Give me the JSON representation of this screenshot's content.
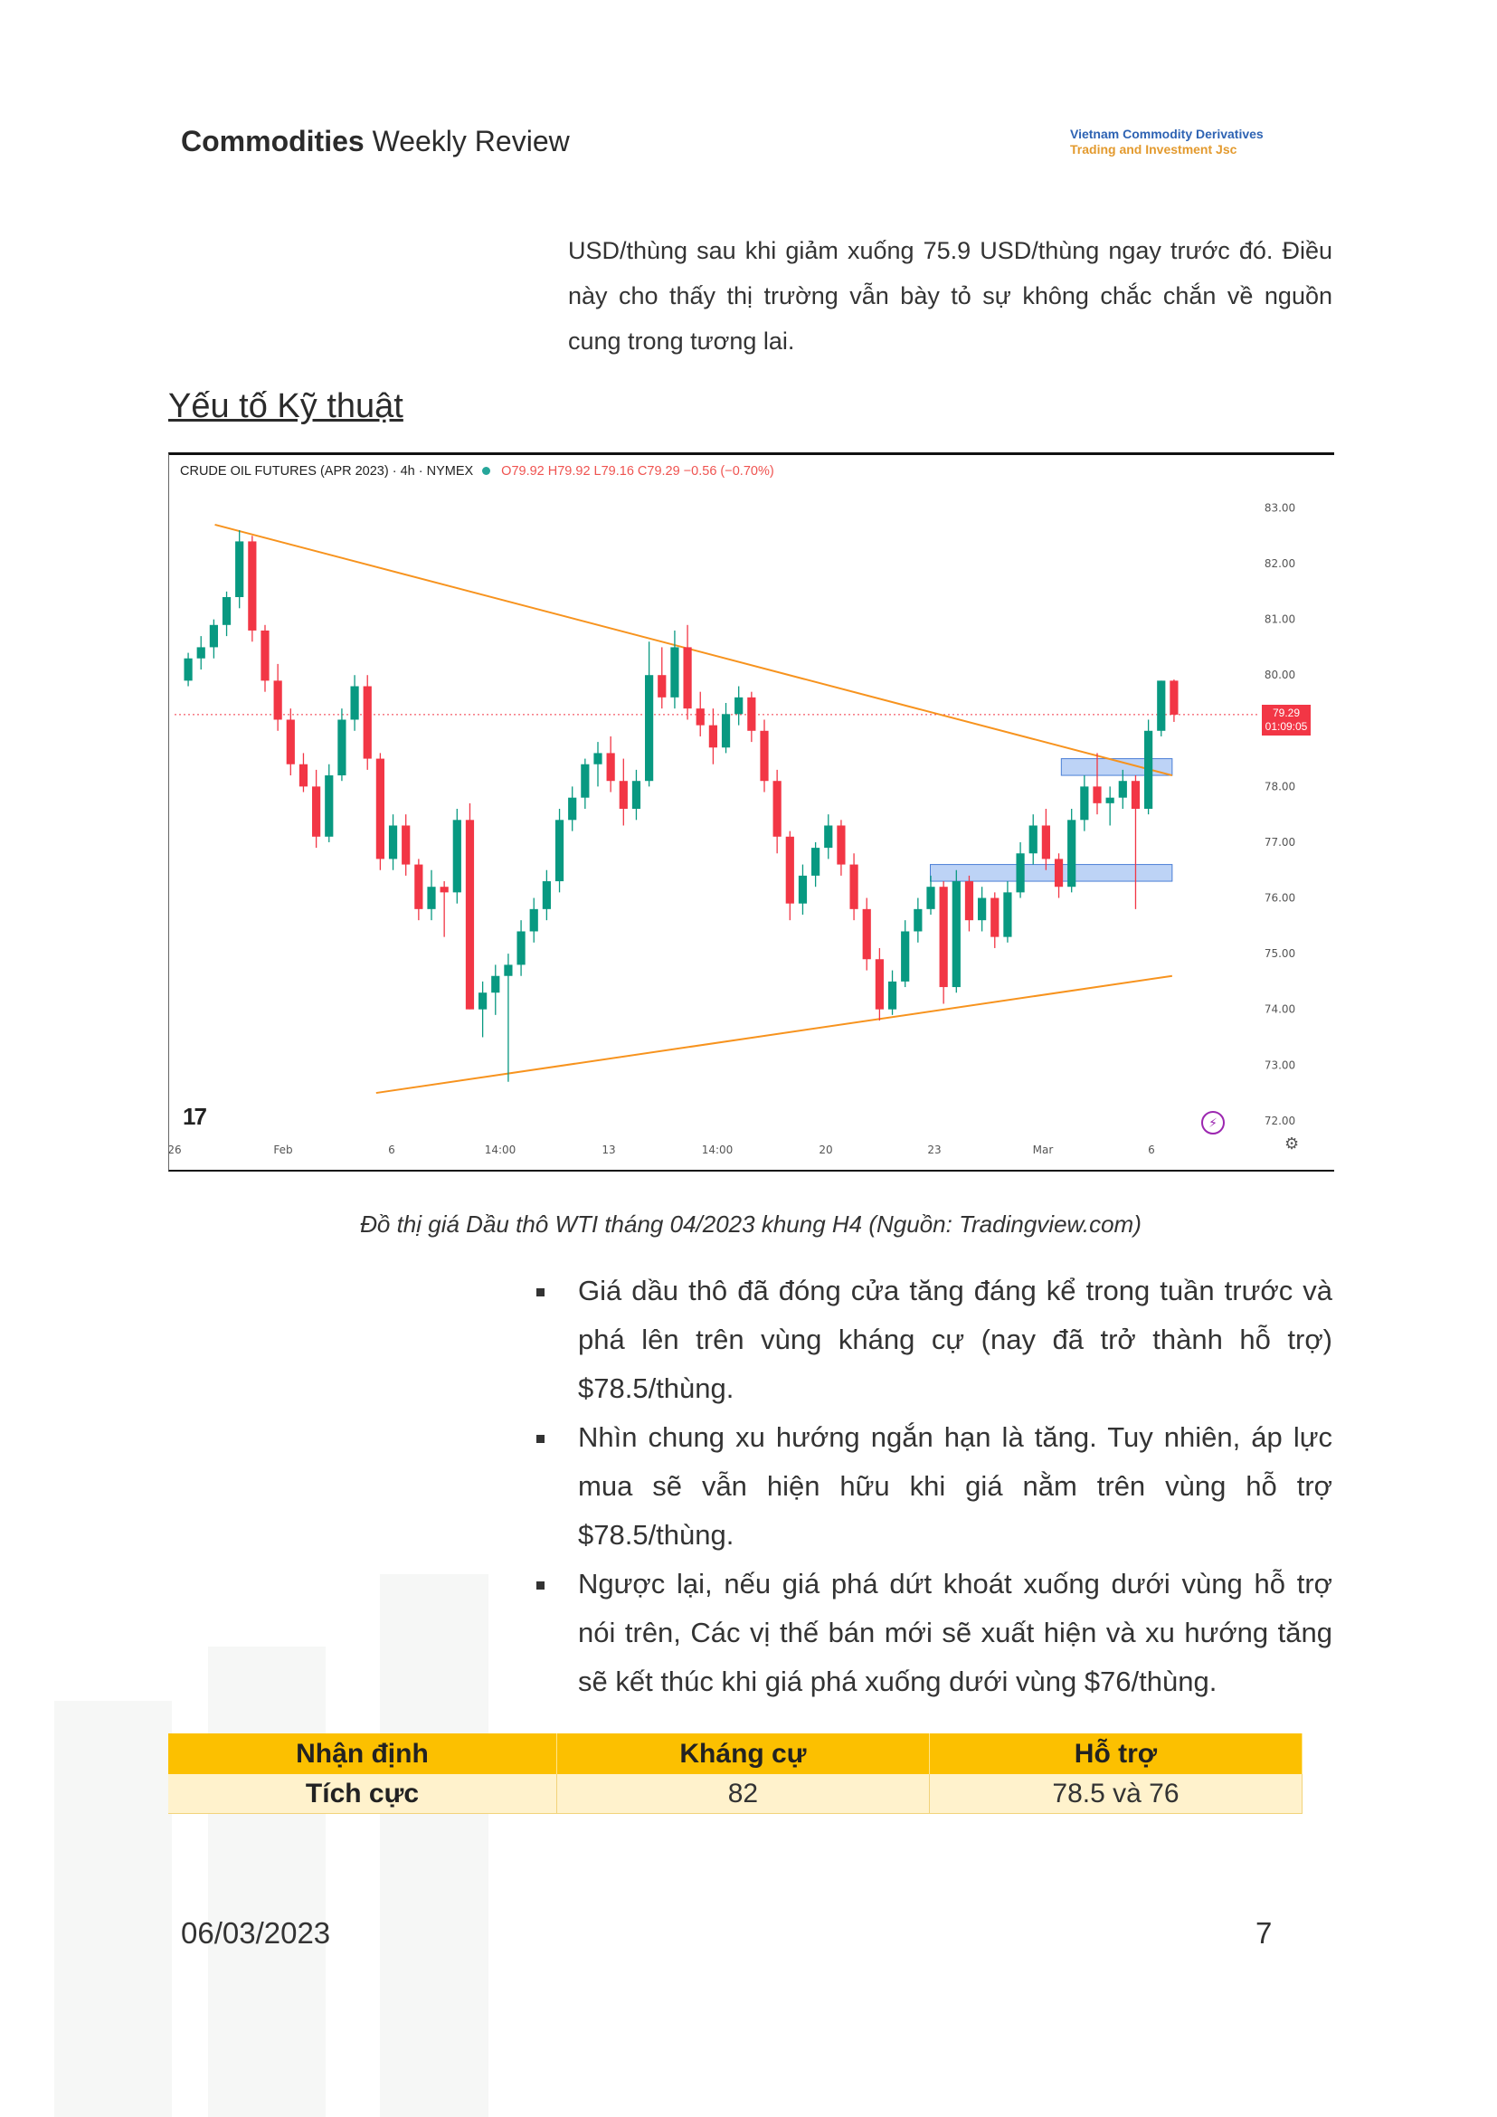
{
  "header": {
    "title_bold": "Commodities",
    "title_rest": " Weekly Review",
    "brand_line1": "Vietnam Commodity Derivatives",
    "brand_line2": "Trading and Investment Jsc"
  },
  "intro_text": "USD/thùng sau khi giảm xuống 75.9 USD/thùng ngay trước đó. Điều này cho thấy thị trường vẫn bày tỏ sự không chắc chắn về nguồn cung trong tương lai.",
  "section_title": "Yếu tố Kỹ thuật",
  "chart_header": {
    "symbol": "CRUDE OIL FUTURES (APR 2023) · 4h · NYMEX",
    "ohlc": "O79.92 H79.92 L79.16 C79.29 −0.56 (−0.70%)"
  },
  "price_tag": {
    "price": "79.29",
    "countdown": "01:09:05"
  },
  "colors": {
    "up": "#089981",
    "down": "#f23645",
    "trendline": "#f7931e",
    "zone": "#6d9eeb",
    "header_bar": "#fcc000",
    "table_row": "#fff2cc"
  },
  "icons": {
    "logo": "tradingview-logo-icon",
    "replay": "bolt-icon",
    "settings": "gear-icon"
  },
  "chart_data": {
    "type": "candlestick",
    "y_ticks": [
      "83.00",
      "82.00",
      "81.00",
      "80.00",
      "78.00",
      "77.00",
      "76.00",
      "75.00",
      "74.00",
      "73.00",
      "72.00"
    ],
    "x_ticks": [
      "26",
      "Feb",
      "6",
      "14:00",
      "13",
      "14:00",
      "20",
      "23",
      "Mar",
      "6"
    ],
    "ylim": [
      71.9,
      83.3
    ],
    "last_price": 79.29,
    "ohlc": [
      [
        79.9,
        80.4,
        79.8,
        80.3
      ],
      [
        80.3,
        80.7,
        80.1,
        80.5
      ],
      [
        80.5,
        81.0,
        80.3,
        80.9
      ],
      [
        80.9,
        81.5,
        80.7,
        81.4
      ],
      [
        81.4,
        82.6,
        81.2,
        82.4
      ],
      [
        82.4,
        82.5,
        80.6,
        80.8
      ],
      [
        80.8,
        80.9,
        79.7,
        79.9
      ],
      [
        79.9,
        80.2,
        79.0,
        79.2
      ],
      [
        79.2,
        79.4,
        78.2,
        78.4
      ],
      [
        78.4,
        78.6,
        77.9,
        78.0
      ],
      [
        78.0,
        78.3,
        76.9,
        77.1
      ],
      [
        77.1,
        78.4,
        77.0,
        78.2
      ],
      [
        78.2,
        79.4,
        78.1,
        79.2
      ],
      [
        79.2,
        80.0,
        79.0,
        79.8
      ],
      [
        79.8,
        80.0,
        78.3,
        78.5
      ],
      [
        78.5,
        78.6,
        76.5,
        76.7
      ],
      [
        76.7,
        77.5,
        76.5,
        77.3
      ],
      [
        77.3,
        77.5,
        76.4,
        76.6
      ],
      [
        76.6,
        76.7,
        75.6,
        75.8
      ],
      [
        75.8,
        76.5,
        75.6,
        76.2
      ],
      [
        76.2,
        76.3,
        75.3,
        76.1
      ],
      [
        76.1,
        77.6,
        75.9,
        77.4
      ],
      [
        77.4,
        77.7,
        74.0,
        74.0
      ],
      [
        74.0,
        74.5,
        73.5,
        74.3
      ],
      [
        74.3,
        74.8,
        73.9,
        74.6
      ],
      [
        74.6,
        75.0,
        72.7,
        74.8
      ],
      [
        74.8,
        75.6,
        74.6,
        75.4
      ],
      [
        75.4,
        76.0,
        75.2,
        75.8
      ],
      [
        75.8,
        76.5,
        75.6,
        76.3
      ],
      [
        76.3,
        77.6,
        76.1,
        77.4
      ],
      [
        77.4,
        78.0,
        77.2,
        77.8
      ],
      [
        77.8,
        78.5,
        77.6,
        78.4
      ],
      [
        78.4,
        78.8,
        78.0,
        78.6
      ],
      [
        78.6,
        78.9,
        77.9,
        78.1
      ],
      [
        78.1,
        78.5,
        77.3,
        77.6
      ],
      [
        77.6,
        78.3,
        77.4,
        78.1
      ],
      [
        78.1,
        80.6,
        78.0,
        80.0
      ],
      [
        80.0,
        80.5,
        79.4,
        79.6
      ],
      [
        79.6,
        80.8,
        79.4,
        80.5
      ],
      [
        80.5,
        80.9,
        79.2,
        79.4
      ],
      [
        79.4,
        79.7,
        78.9,
        79.1
      ],
      [
        79.1,
        79.4,
        78.4,
        78.7
      ],
      [
        78.7,
        79.5,
        78.6,
        79.3
      ],
      [
        79.3,
        79.8,
        79.1,
        79.6
      ],
      [
        79.6,
        79.7,
        78.8,
        79.0
      ],
      [
        79.0,
        79.2,
        77.9,
        78.1
      ],
      [
        78.1,
        78.3,
        76.8,
        77.1
      ],
      [
        77.1,
        77.2,
        75.6,
        75.9
      ],
      [
        75.9,
        76.6,
        75.7,
        76.4
      ],
      [
        76.4,
        77.0,
        76.2,
        76.9
      ],
      [
        76.9,
        77.5,
        76.7,
        77.3
      ],
      [
        77.3,
        77.4,
        76.4,
        76.6
      ],
      [
        76.6,
        76.8,
        75.6,
        75.8
      ],
      [
        75.8,
        76.0,
        74.7,
        74.9
      ],
      [
        74.9,
        75.1,
        73.8,
        74.0
      ],
      [
        74.0,
        74.7,
        73.9,
        74.5
      ],
      [
        74.5,
        75.6,
        74.4,
        75.4
      ],
      [
        75.4,
        76.0,
        75.2,
        75.8
      ],
      [
        75.8,
        76.4,
        75.7,
        76.2
      ],
      [
        76.2,
        76.3,
        74.1,
        74.4
      ],
      [
        74.4,
        76.5,
        74.3,
        76.3
      ],
      [
        76.3,
        76.4,
        75.4,
        75.6
      ],
      [
        75.6,
        76.2,
        75.4,
        76.0
      ],
      [
        76.0,
        76.1,
        75.1,
        75.3
      ],
      [
        75.3,
        76.3,
        75.2,
        76.1
      ],
      [
        76.1,
        77.0,
        76.0,
        76.8
      ],
      [
        76.8,
        77.5,
        76.6,
        77.3
      ],
      [
        77.3,
        77.6,
        76.5,
        76.7
      ],
      [
        76.7,
        76.8,
        76.0,
        76.2
      ],
      [
        76.2,
        77.6,
        76.1,
        77.4
      ],
      [
        77.4,
        78.2,
        77.2,
        78.0
      ],
      [
        78.0,
        78.6,
        77.5,
        77.7
      ],
      [
        77.7,
        78.0,
        77.3,
        77.8
      ],
      [
        77.8,
        78.3,
        77.6,
        78.1
      ],
      [
        78.1,
        78.2,
        75.8,
        77.6
      ],
      [
        77.6,
        79.2,
        77.5,
        79.0
      ],
      [
        79.0,
        79.9,
        78.9,
        79.9
      ],
      [
        79.9,
        79.92,
        79.16,
        79.29
      ]
    ],
    "overlays": {
      "falling_trendline": [
        [
          0.04,
          82.7
        ],
        [
          0.99,
          78.2
        ]
      ],
      "rising_trendline": [
        [
          0.2,
          72.5
        ],
        [
          0.99,
          74.6
        ]
      ],
      "zones": [
        {
          "x": [
            0.75,
            0.99
          ],
          "y": [
            76.3,
            76.6
          ]
        },
        {
          "x": [
            0.88,
            0.99
          ],
          "y": [
            78.2,
            78.5
          ]
        }
      ]
    }
  },
  "caption": "Đồ thị giá Dầu thô WTI tháng 04/2023 khung H4 (Nguồn: Tradingview.com)",
  "bullets": [
    "Giá dầu thô đã đóng cửa tăng đáng kể trong tuần trước và phá lên trên vùng kháng cự (nay đã trở thành hỗ trợ) $78.5/thùng.",
    "Nhìn chung xu hướng ngắn hạn là tăng. Tuy nhiên, áp lực mua sẽ vẫn hiện hữu khi giá nằm trên vùng hỗ trợ $78.5/thùng.",
    "Ngược lại, nếu giá phá dứt khoát xuống dưới vùng hỗ trợ nói trên, Các vị thế bán mới sẽ xuất hiện và xu hướng tăng sẽ kết thúc khi giá phá xuống dưới vùng $76/thùng."
  ],
  "table": {
    "headers": [
      "Nhận định",
      "Kháng cự",
      "Hỗ trợ"
    ],
    "row": [
      "Tích cực",
      "82",
      "78.5 và 76"
    ]
  },
  "footer": {
    "date": "06/03/2023",
    "page": "7"
  }
}
